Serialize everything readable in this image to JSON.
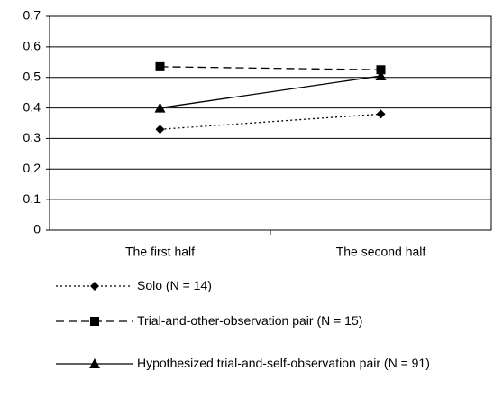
{
  "chart_data": {
    "type": "line",
    "categories": [
      "The first half",
      "The second half"
    ],
    "series": [
      {
        "name": "Solo (N = 14)",
        "color": "#000000",
        "dash": "dotted",
        "marker": "diamond",
        "values": [
          0.33,
          0.38
        ]
      },
      {
        "name": "Trial-and-other-observation pair (N = 15)",
        "color": "#000000",
        "dash": "dashed",
        "marker": "square",
        "values": [
          0.535,
          0.525
        ]
      },
      {
        "name": "Hypothesized trial-and-self-observation pair (N = 91)",
        "color": "#000000",
        "dash": "solid",
        "marker": "triangle",
        "values": [
          0.4,
          0.505
        ]
      }
    ],
    "ylim": [
      0,
      0.7
    ],
    "yticks": [
      0,
      0.1,
      0.2,
      0.3,
      0.4,
      0.5,
      0.6,
      0.7
    ],
    "grid": true,
    "legend": "bottom"
  }
}
